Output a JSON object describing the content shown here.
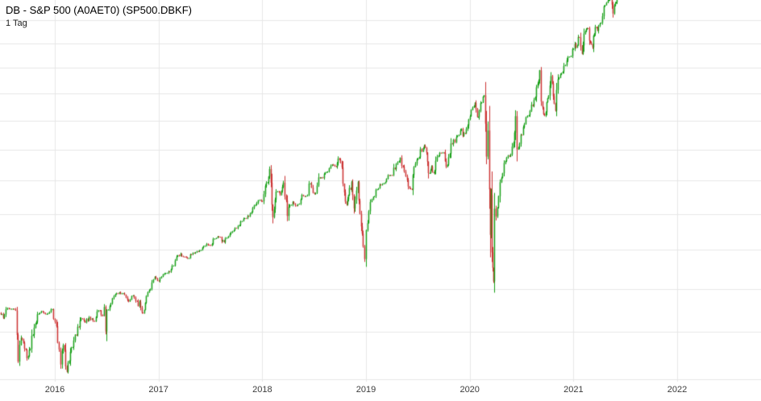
{
  "header": {
    "title": "DB - S&P 500 (A0AET0) (SP500.DBKF)",
    "timeframe": "1 Tag"
  },
  "colors": {
    "background": "#ffffff",
    "grid": "#e7e7e7",
    "up": "#18a018",
    "down": "#cc3333",
    "title_text": "#000000",
    "axis_text": "#3c3c3c"
  },
  "chart_data": {
    "type": "candlestick",
    "title": "DB - S&P 500 (A0AET0) (SP500.DBKF)",
    "timeframe": "1 Tag",
    "x_ticks": [
      2016,
      2017,
      2018,
      2019,
      2020,
      2021,
      2022
    ],
    "x_range": [
      2015.4715,
      2022.808
    ],
    "y_scale": "log",
    "y_range_visible": [
      1789,
      4187
    ],
    "y_axis_labels_visible": false,
    "grid": true,
    "grid_price_start": 1800,
    "grid_price_step": 200,
    "price_path": [
      [
        2015.47,
        2085
      ],
      [
        2015.5,
        2063
      ],
      [
        2015.54,
        2108
      ],
      [
        2015.58,
        2104
      ],
      [
        2015.62,
        2096
      ],
      [
        2015.645,
        1871
      ],
      [
        2015.67,
        1972
      ],
      [
        2015.73,
        1885
      ],
      [
        2015.75,
        1920
      ],
      [
        2015.8,
        2018
      ],
      [
        2015.83,
        2079
      ],
      [
        2015.88,
        2090
      ],
      [
        2015.92,
        2080
      ],
      [
        2015.96,
        2102
      ],
      [
        2016.0,
        2044
      ],
      [
        2016.04,
        1922
      ],
      [
        2016.055,
        1859
      ],
      [
        2016.08,
        1940
      ],
      [
        2016.115,
        1829
      ],
      [
        2016.17,
        1932
      ],
      [
        2016.22,
        2022
      ],
      [
        2016.25,
        2060
      ],
      [
        2016.29,
        2041
      ],
      [
        2016.33,
        2065
      ],
      [
        2016.38,
        2047
      ],
      [
        2016.42,
        2097
      ],
      [
        2016.46,
        2071
      ],
      [
        2016.475,
        2113
      ],
      [
        2016.49,
        2001
      ],
      [
        2016.5,
        2099
      ],
      [
        2016.54,
        2130
      ],
      [
        2016.58,
        2174
      ],
      [
        2016.62,
        2183
      ],
      [
        2016.67,
        2171
      ],
      [
        2016.71,
        2139
      ],
      [
        2016.75,
        2168
      ],
      [
        2016.79,
        2140
      ],
      [
        2016.85,
        2085
      ],
      [
        2016.88,
        2165
      ],
      [
        2016.92,
        2199
      ],
      [
        2016.96,
        2260
      ],
      [
        2017.0,
        2239
      ],
      [
        2017.04,
        2271
      ],
      [
        2017.08,
        2279
      ],
      [
        2017.13,
        2316
      ],
      [
        2017.17,
        2364
      ],
      [
        2017.21,
        2378
      ],
      [
        2017.25,
        2363
      ],
      [
        2017.29,
        2356
      ],
      [
        2017.33,
        2384
      ],
      [
        2017.38,
        2390
      ],
      [
        2017.42,
        2412
      ],
      [
        2017.46,
        2432
      ],
      [
        2017.5,
        2423
      ],
      [
        2017.54,
        2460
      ],
      [
        2017.58,
        2470
      ],
      [
        2017.63,
        2441
      ],
      [
        2017.67,
        2472
      ],
      [
        2017.71,
        2500
      ],
      [
        2017.75,
        2519
      ],
      [
        2017.79,
        2557
      ],
      [
        2017.83,
        2575
      ],
      [
        2017.88,
        2600
      ],
      [
        2017.92,
        2648
      ],
      [
        2017.96,
        2680
      ],
      [
        2018.0,
        2674
      ],
      [
        2018.04,
        2786
      ],
      [
        2018.07,
        2873
      ],
      [
        2018.1,
        2581
      ],
      [
        2018.13,
        2732
      ],
      [
        2018.17,
        2714
      ],
      [
        2018.2,
        2787
      ],
      [
        2018.24,
        2588
      ],
      [
        2018.25,
        2641
      ],
      [
        2018.29,
        2670
      ],
      [
        2018.33,
        2648
      ],
      [
        2018.38,
        2712
      ],
      [
        2018.42,
        2705
      ],
      [
        2018.46,
        2782
      ],
      [
        2018.5,
        2718
      ],
      [
        2018.54,
        2820
      ],
      [
        2018.58,
        2816
      ],
      [
        2018.63,
        2857
      ],
      [
        2018.67,
        2902
      ],
      [
        2018.71,
        2888
      ],
      [
        2018.73,
        2941
      ],
      [
        2018.75,
        2914
      ],
      [
        2018.79,
        2728
      ],
      [
        2018.81,
        2656
      ],
      [
        2018.83,
        2712
      ],
      [
        2018.86,
        2790
      ],
      [
        2018.88,
        2632
      ],
      [
        2018.92,
        2790
      ],
      [
        2018.94,
        2600
      ],
      [
        2018.97,
        2417
      ],
      [
        2018.985,
        2351
      ],
      [
        2019.0,
        2507
      ],
      [
        2019.04,
        2670
      ],
      [
        2019.08,
        2704
      ],
      [
        2019.13,
        2775
      ],
      [
        2019.17,
        2784
      ],
      [
        2019.21,
        2834
      ],
      [
        2019.25,
        2834
      ],
      [
        2019.29,
        2906
      ],
      [
        2019.33,
        2946
      ],
      [
        2019.38,
        2826
      ],
      [
        2019.42,
        2752
      ],
      [
        2019.44,
        2744
      ],
      [
        2019.46,
        2886
      ],
      [
        2019.5,
        2942
      ],
      [
        2019.56,
        3026
      ],
      [
        2019.58,
        2980
      ],
      [
        2019.6,
        2847
      ],
      [
        2019.63,
        2889
      ],
      [
        2019.65,
        2847
      ],
      [
        2019.67,
        2926
      ],
      [
        2019.71,
        2979
      ],
      [
        2019.75,
        2977
      ],
      [
        2019.77,
        2888
      ],
      [
        2019.83,
        3038
      ],
      [
        2019.88,
        3094
      ],
      [
        2019.92,
        3141
      ],
      [
        2019.93,
        3093
      ],
      [
        2020.0,
        3231
      ],
      [
        2020.05,
        3330
      ],
      [
        2020.07,
        3226
      ],
      [
        2020.1,
        3328
      ],
      [
        2020.135,
        3386
      ],
      [
        2020.16,
        2954
      ],
      [
        2020.175,
        3130
      ],
      [
        2020.19,
        2746
      ],
      [
        2020.197,
        2481
      ],
      [
        2020.203,
        2711
      ],
      [
        2020.21,
        2386
      ],
      [
        2020.218,
        2305
      ],
      [
        2020.226,
        2237
      ],
      [
        2020.233,
        2630
      ],
      [
        2020.25,
        2585
      ],
      [
        2020.29,
        2790
      ],
      [
        2020.33,
        2912
      ],
      [
        2020.38,
        2955
      ],
      [
        2020.42,
        3044
      ],
      [
        2020.44,
        3232
      ],
      [
        2020.455,
        3002
      ],
      [
        2020.5,
        3100
      ],
      [
        2020.54,
        3224
      ],
      [
        2020.58,
        3271
      ],
      [
        2020.63,
        3373
      ],
      [
        2020.665,
        3500
      ],
      [
        2020.673,
        3580
      ],
      [
        2020.69,
        3339
      ],
      [
        2020.72,
        3237
      ],
      [
        2020.75,
        3363
      ],
      [
        2020.78,
        3534
      ],
      [
        2020.825,
        3271
      ],
      [
        2020.85,
        3510
      ],
      [
        2020.88,
        3558
      ],
      [
        2020.92,
        3622
      ],
      [
        2020.96,
        3690
      ],
      [
        2021.0,
        3756
      ],
      [
        2021.055,
        3853
      ],
      [
        2021.08,
        3714
      ],
      [
        2021.1,
        3886
      ],
      [
        2021.13,
        3932
      ],
      [
        2021.16,
        3811
      ],
      [
        2021.18,
        3768
      ],
      [
        2021.21,
        3943
      ],
      [
        2021.23,
        3910
      ],
      [
        2021.25,
        3973
      ],
      [
        2021.29,
        4128
      ],
      [
        2021.33,
        4181
      ],
      [
        2021.36,
        4233
      ],
      [
        2021.38,
        4063
      ],
      [
        2021.4,
        4159
      ],
      [
        2021.42,
        4204
      ],
      [
        2021.45,
        4247
      ]
    ]
  }
}
